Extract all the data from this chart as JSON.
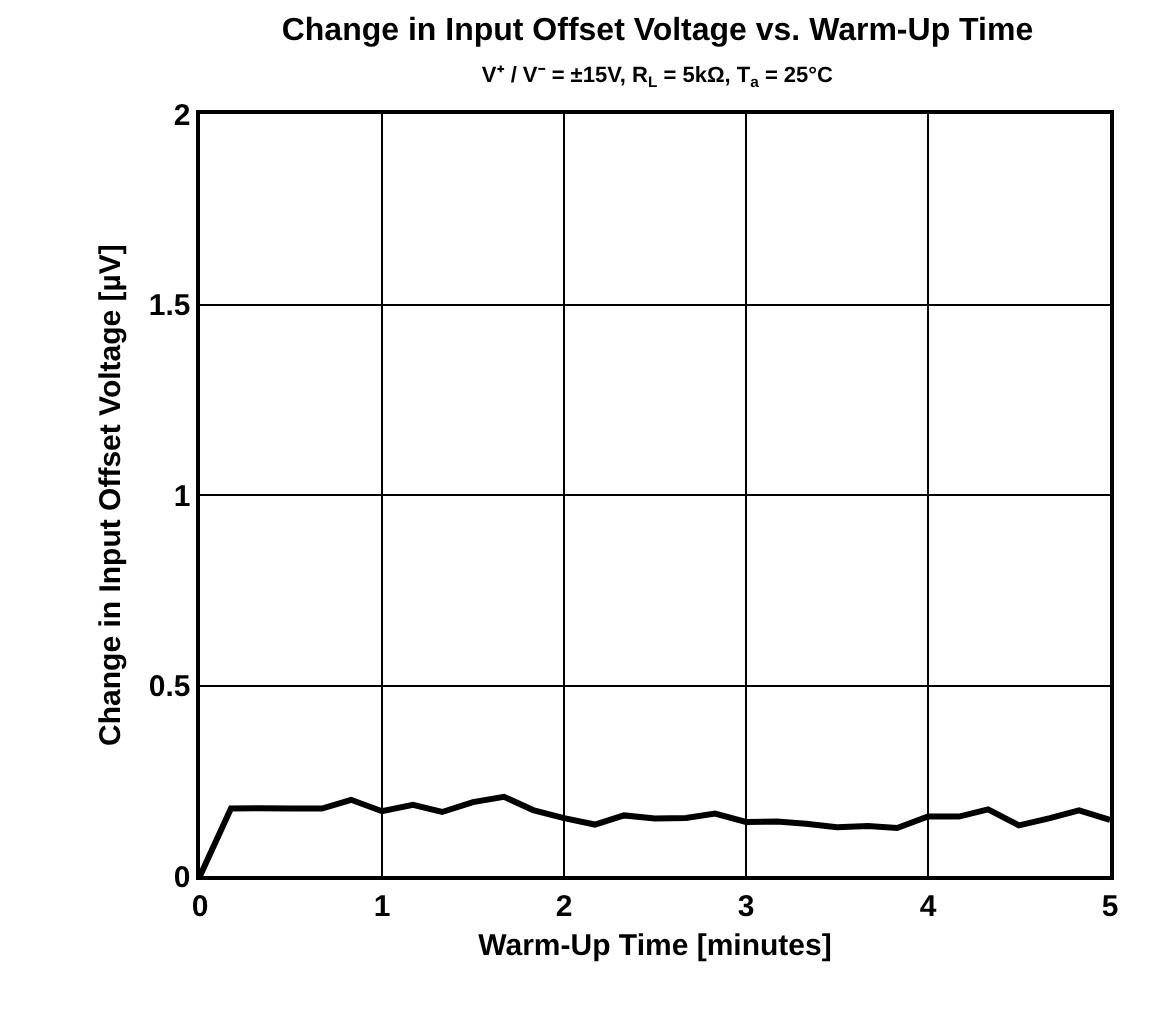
{
  "chart_data": {
    "type": "line",
    "title": "Change in Input Offset Voltage vs. Warm-Up Time",
    "subtitle": "V⁺ / V⁻ = ±15V, R$_{L}$ = 5kΩ, T$_{a}$ = 25°C",
    "xlabel": "Warm-Up Time [minutes]",
    "ylabel": "Change in Input Offset Voltage [µV]",
    "x": [
      0,
      0.17,
      0.33,
      0.5,
      0.67,
      0.83,
      1.0,
      1.17,
      1.33,
      1.5,
      1.67,
      1.83,
      2.0,
      2.17,
      2.33,
      2.5,
      2.67,
      2.83,
      3.0,
      3.17,
      3.33,
      3.5,
      3.67,
      3.83,
      4.0,
      4.17,
      4.33,
      4.5,
      4.67,
      4.83,
      5.0
    ],
    "series": [
      {
        "color": "#000000",
        "values": [
          0,
          0.177,
          0.178,
          0.177,
          0.177,
          0.2,
          0.17,
          0.187,
          0.168,
          0.194,
          0.208,
          0.173,
          0.152,
          0.135,
          0.159,
          0.151,
          0.152,
          0.164,
          0.142,
          0.143,
          0.137,
          0.128,
          0.131,
          0.126,
          0.156,
          0.156,
          0.175,
          0.133,
          0.152,
          0.172,
          0.147
        ]
      }
    ],
    "xlim": [
      0,
      5
    ],
    "xticks": [
      0,
      1,
      2,
      3,
      4,
      5
    ],
    "ylim": [
      0,
      2
    ],
    "yticks": [
      0,
      0.5,
      1,
      1.5,
      2
    ],
    "grid": true,
    "marker": "none",
    "line_style": "solid"
  }
}
